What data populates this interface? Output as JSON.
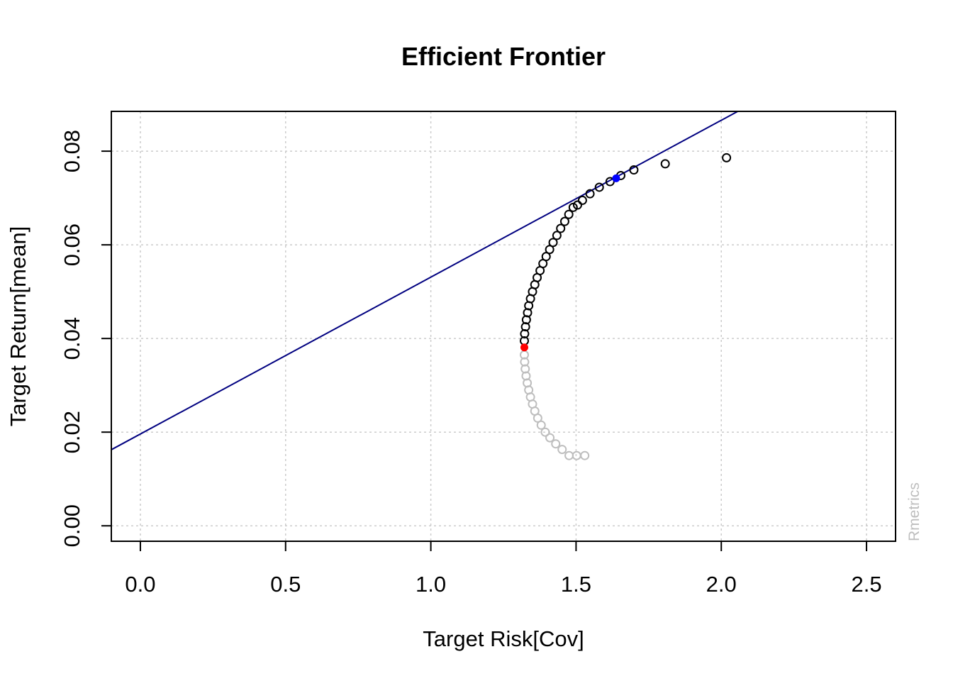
{
  "chart_data": {
    "type": "scatter",
    "title": "Efficient Frontier",
    "xlabel": "Target Risk[Cov]",
    "ylabel": "Target Return[mean]",
    "credit": "Rmetrics",
    "xlim": [
      -0.1,
      2.6
    ],
    "ylim": [
      -0.0033,
      0.0885
    ],
    "x_ticks": [
      0.0,
      0.5,
      1.0,
      1.5,
      2.0,
      2.5
    ],
    "x_tick_labels": [
      "0.0",
      "0.5",
      "1.0",
      "1.5",
      "2.0",
      "2.5"
    ],
    "y_ticks": [
      0.0,
      0.02,
      0.04,
      0.06,
      0.08
    ],
    "y_tick_labels": [
      "0.00",
      "0.02",
      "0.04",
      "0.06",
      "0.08"
    ],
    "grid": true,
    "colors": {
      "efficient": "#000000",
      "inefficient": "#bebebe",
      "min_variance": "#ff0000",
      "tangency": "#0000ff",
      "tangency_line": "#000080",
      "grid": "#cccccc"
    },
    "series": [
      {
        "x": [
          1.322,
          1.323,
          1.326,
          1.329,
          1.333,
          1.337,
          1.343,
          1.35,
          1.358,
          1.366,
          1.376,
          1.386,
          1.397,
          1.409,
          1.421,
          1.434,
          1.447,
          1.461,
          1.475,
          1.49,
          1.505,
          1.522,
          1.548,
          1.58,
          1.617,
          1.654,
          1.699,
          1.807,
          2.018
        ],
        "y": [
          0.0395,
          0.041,
          0.0425,
          0.044,
          0.0455,
          0.047,
          0.0485,
          0.05,
          0.0515,
          0.053,
          0.0545,
          0.056,
          0.0575,
          0.059,
          0.0605,
          0.062,
          0.0635,
          0.065,
          0.0665,
          0.068,
          0.0685,
          0.0695,
          0.0709,
          0.0723,
          0.0735,
          0.0748,
          0.076,
          0.0773,
          0.0786
        ]
      },
      {
        "x": [
          1.322,
          1.323,
          1.325,
          1.328,
          1.332,
          1.337,
          1.343,
          1.35,
          1.358,
          1.368,
          1.38,
          1.394,
          1.41,
          1.43,
          1.452,
          1.476,
          1.502,
          1.53
        ],
        "y": [
          0.0365,
          0.035,
          0.0335,
          0.032,
          0.0305,
          0.029,
          0.0275,
          0.026,
          0.0245,
          0.023,
          0.0215,
          0.02,
          0.0188,
          0.0175,
          0.0163,
          0.015,
          0.015,
          0.015
        ]
      },
      {
        "x": [
          1.322
        ],
        "y": [
          0.0381
        ]
      },
      {
        "x": [
          1.638
        ],
        "y": [
          0.0742
        ]
      }
    ],
    "tangency_line": {
      "intercept": 0.0196,
      "slope": 0.0335
    }
  }
}
